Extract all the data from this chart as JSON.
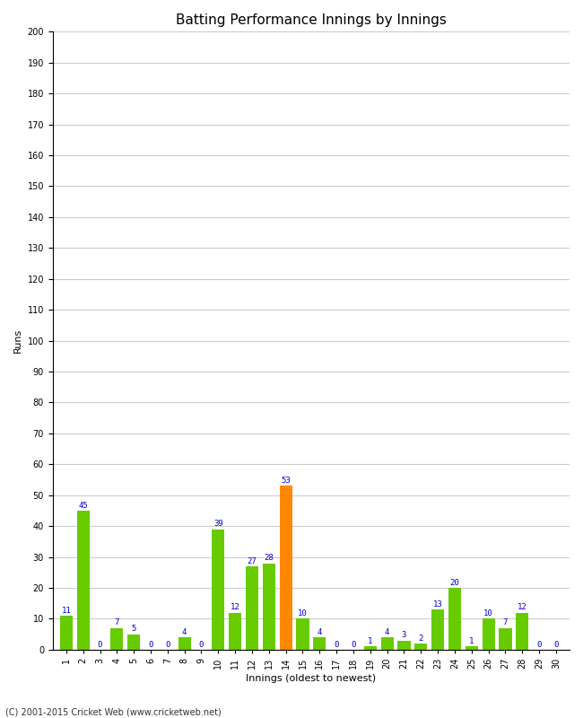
{
  "title": "Batting Performance Innings by Innings",
  "xlabel": "Innings (oldest to newest)",
  "ylabel": "Runs",
  "values": [
    11,
    45,
    0,
    7,
    5,
    0,
    0,
    4,
    0,
    39,
    12,
    27,
    28,
    53,
    10,
    4,
    0,
    0,
    1,
    4,
    3,
    2,
    13,
    20,
    1,
    10,
    7,
    12,
    0,
    0
  ],
  "innings": [
    1,
    2,
    3,
    4,
    5,
    6,
    7,
    8,
    9,
    10,
    11,
    12,
    13,
    14,
    15,
    16,
    17,
    18,
    19,
    20,
    21,
    22,
    23,
    24,
    25,
    26,
    27,
    28,
    29,
    30
  ],
  "highlight_index": 13,
  "bar_color": "#66cc00",
  "highlight_color": "#ff8800",
  "label_color": "#0000cc",
  "ylim": [
    0,
    200
  ],
  "ytick_step": 10,
  "background_color": "#ffffff",
  "grid_color": "#cccccc",
  "footer": "(C) 2001-2015 Cricket Web (www.cricketweb.net)",
  "title_fontsize": 11,
  "axis_label_fontsize": 8,
  "tick_fontsize": 7,
  "bar_label_fontsize": 6.5
}
